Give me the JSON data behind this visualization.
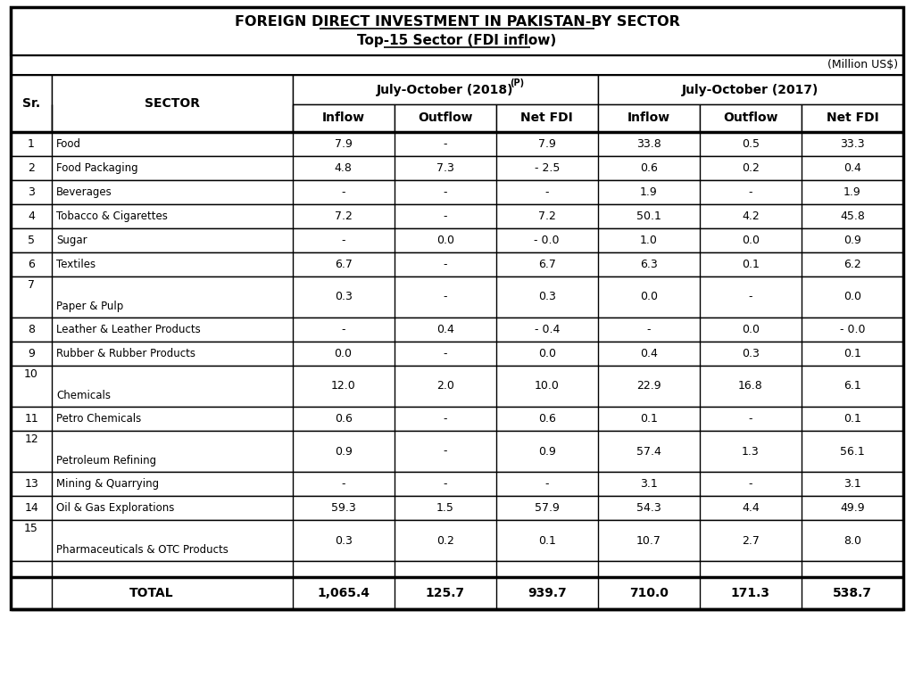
{
  "title_line1": "FOREIGN DIRECT INVESTMENT IN PAKISTAN-BY SECTOR",
  "title_line2": "Top-15 Sector (FDI inflow)",
  "unit_label": "(Million US$)",
  "col_header1": "July-October (2018)",
  "col_header1_sup": "(P)",
  "col_header2": "July-October (2017)",
  "sub_headers": [
    "Inflow",
    "Outflow",
    "Net FDI",
    "Inflow",
    "Outflow",
    "Net FDI"
  ],
  "sr_header": "Sr.",
  "sector_header": "SECTOR",
  "rows": [
    {
      "sr": "1",
      "sector": "Food",
      "tall": false,
      "data": [
        "7.9",
        "-",
        "7.9",
        "33.8",
        "0.5",
        "33.3"
      ]
    },
    {
      "sr": "2",
      "sector": "Food Packaging",
      "tall": false,
      "data": [
        "4.8",
        "7.3",
        "- 2.5",
        "0.6",
        "0.2",
        "0.4"
      ]
    },
    {
      "sr": "3",
      "sector": "Beverages",
      "tall": false,
      "data": [
        "-",
        "-",
        "-",
        "1.9",
        "-",
        "1.9"
      ]
    },
    {
      "sr": "4",
      "sector": "Tobacco & Cigarettes",
      "tall": false,
      "data": [
        "7.2",
        "-",
        "7.2",
        "50.1",
        "4.2",
        "45.8"
      ]
    },
    {
      "sr": "5",
      "sector": "Sugar",
      "tall": false,
      "data": [
        "-",
        "0.0",
        "- 0.0",
        "1.0",
        "0.0",
        "0.9"
      ]
    },
    {
      "sr": "6",
      "sector": "Textiles",
      "tall": false,
      "data": [
        "6.7",
        "-",
        "6.7",
        "6.3",
        "0.1",
        "6.2"
      ]
    },
    {
      "sr": "7",
      "sector": "Paper & Pulp",
      "tall": true,
      "data": [
        "0.3",
        "-",
        "0.3",
        "0.0",
        "-",
        "0.0"
      ]
    },
    {
      "sr": "8",
      "sector": "Leather & Leather Products",
      "tall": false,
      "data": [
        "-",
        "0.4",
        "- 0.4",
        "-",
        "0.0",
        "- 0.0"
      ]
    },
    {
      "sr": "9",
      "sector": "Rubber & Rubber Products",
      "tall": false,
      "data": [
        "0.0",
        "-",
        "0.0",
        "0.4",
        "0.3",
        "0.1"
      ]
    },
    {
      "sr": "10",
      "sector": "Chemicals",
      "tall": true,
      "data": [
        "12.0",
        "2.0",
        "10.0",
        "22.9",
        "16.8",
        "6.1"
      ]
    },
    {
      "sr": "11",
      "sector": "Petro Chemicals",
      "tall": false,
      "data": [
        "0.6",
        "-",
        "0.6",
        "0.1",
        "-",
        "0.1"
      ]
    },
    {
      "sr": "12",
      "sector": "Petroleum Refining",
      "tall": true,
      "data": [
        "0.9",
        "-",
        "0.9",
        "57.4",
        "1.3",
        "56.1"
      ]
    },
    {
      "sr": "13",
      "sector": "Mining & Quarrying",
      "tall": false,
      "data": [
        "-",
        "-",
        "-",
        "3.1",
        "-",
        "3.1"
      ]
    },
    {
      "sr": "14",
      "sector": "Oil & Gas Explorations",
      "tall": false,
      "data": [
        "59.3",
        "1.5",
        "57.9",
        "54.3",
        "4.4",
        "49.9"
      ]
    },
    {
      "sr": "15",
      "sector": "Pharmaceuticals & OTC Products",
      "tall": true,
      "data": [
        "0.3",
        "0.2",
        "0.1",
        "10.7",
        "2.7",
        "8.0"
      ]
    }
  ],
  "total_row": {
    "label": "TOTAL",
    "data": [
      "1,065.4",
      "125.7",
      "939.7",
      "710.0",
      "171.3",
      "538.7"
    ]
  },
  "bg_color": "#ffffff",
  "border_color": "#000000"
}
